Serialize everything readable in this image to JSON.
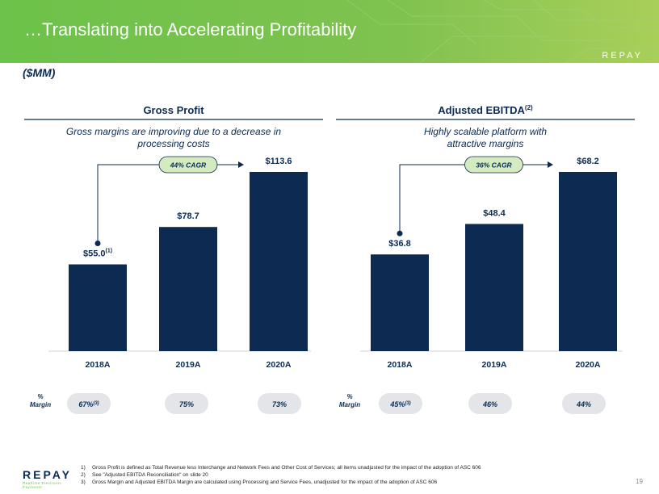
{
  "header": {
    "title": "…Translating into Accelerating Profitability",
    "logo": "REPAY"
  },
  "unit_label": "($MM)",
  "footnotes": [
    {
      "num": "1)",
      "text": "Gross Profit is defined as Total Revenue less Interchange and Network Fees and Other Cost of Services; all items unadjusted for the impact of the adoption of ASC 606"
    },
    {
      "num": "2)",
      "text": "See \"Adjusted EBITDA Reconciliation\" on slide 20"
    },
    {
      "num": "3)",
      "text": "Gross Margin and Adjusted EBITDA Margin are calculated using Processing and Service Fees, unadjusted for the impact of the adoption of ASC 606"
    }
  ],
  "footer_logo": {
    "word": "REPAY",
    "tagline": "Realtime Electronic Payments"
  },
  "page_number": "19",
  "colors": {
    "bar": "#0c2a52",
    "brand_green": "#6cc24a",
    "pill": "#e3e5e8",
    "cagr_pill": "#d4ebc0"
  },
  "chart_data": [
    {
      "type": "bar",
      "title": "Gross Profit",
      "title_sup": "",
      "subtitle": "Gross margins are improving due to a decrease in processing costs",
      "categories": [
        "2018A",
        "2019A",
        "2020A"
      ],
      "values": [
        55.0,
        78.7,
        113.6
      ],
      "data_labels": [
        "$55.0",
        "$78.7",
        "$113.6"
      ],
      "data_label_sups": [
        "(1)",
        "",
        ""
      ],
      "cagr": "44% CAGR",
      "margin_label": [
        "%",
        "Margin"
      ],
      "margins": [
        "67%",
        "75%",
        "73%"
      ],
      "margin_sups": [
        "(3)",
        "",
        ""
      ],
      "ylim": [
        0,
        113.6
      ]
    },
    {
      "type": "bar",
      "title": "Adjusted EBITDA",
      "title_sup": "(2)",
      "subtitle": "Highly scalable platform with attractive margins",
      "categories": [
        "2018A",
        "2019A",
        "2020A"
      ],
      "values": [
        36.8,
        48.4,
        68.2
      ],
      "data_labels": [
        "$36.8",
        "$48.4",
        "$68.2"
      ],
      "data_label_sups": [
        "",
        "",
        ""
      ],
      "cagr": "36% CAGR",
      "margin_label": [
        "%",
        "Margin"
      ],
      "margins": [
        "45%",
        "46%",
        "44%"
      ],
      "margin_sups": [
        "(3)",
        "",
        ""
      ],
      "ylim": [
        0,
        68.2
      ]
    }
  ]
}
